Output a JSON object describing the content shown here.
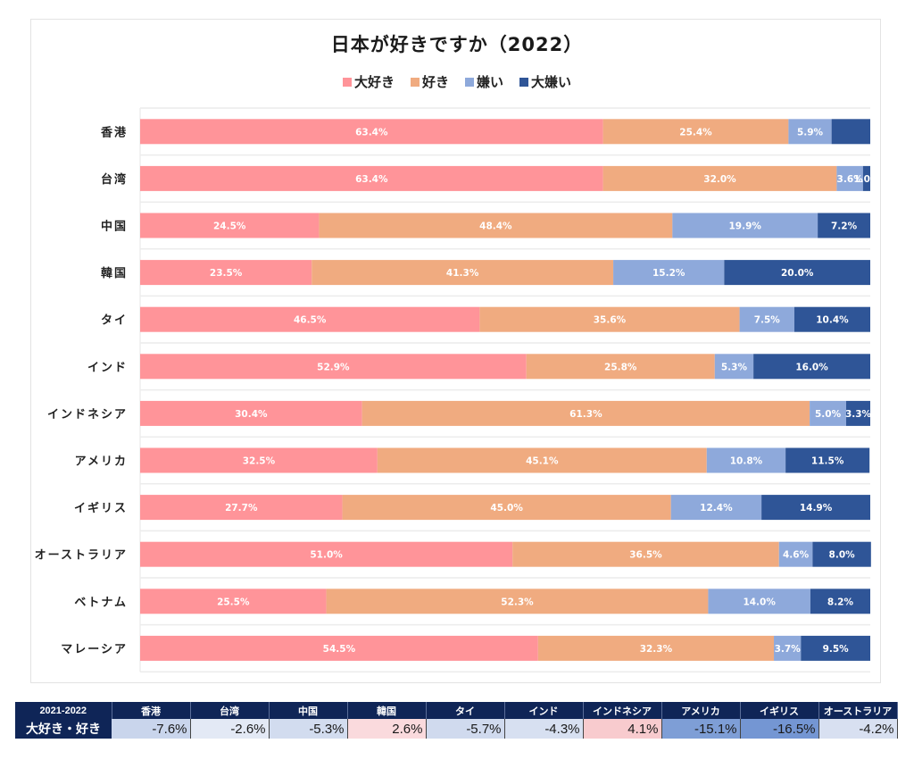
{
  "chart_data": {
    "type": "bar",
    "orientation": "horizontal",
    "stacked": "percent",
    "title": "日本が好きですか（2022）",
    "xlabel": "",
    "ylabel": "",
    "xlim": [
      0,
      100
    ],
    "grid": true,
    "legend_position": "top",
    "categories": [
      "香港",
      "台湾",
      "中国",
      "韓国",
      "タイ",
      "インド",
      "インドネシア",
      "アメリカ",
      "イギリス",
      "オーストラリア",
      "ベトナム",
      "マレーシア"
    ],
    "series": [
      {
        "name": "大好き",
        "color": "#ff9499",
        "values": [
          63.4,
          63.4,
          24.5,
          23.5,
          46.5,
          52.9,
          30.4,
          32.5,
          27.7,
          51.0,
          25.5,
          54.5
        ],
        "labels": [
          "63.4%",
          "63.4%",
          "24.5%",
          "23.5%",
          "46.5%",
          "52.9%",
          "30.4%",
          "32.5%",
          "27.7%",
          "51.0%",
          "25.5%",
          "54.5%"
        ]
      },
      {
        "name": "好き",
        "color": "#f0ab80",
        "values": [
          25.4,
          32.0,
          48.4,
          41.3,
          35.6,
          25.8,
          61.3,
          45.1,
          45.0,
          36.5,
          52.3,
          32.3
        ],
        "labels": [
          "25.4%",
          "32.0%",
          "48.4%",
          "41.3%",
          "35.6%",
          "25.8%",
          "61.3%",
          "45.1%",
          "45.0%",
          "36.5%",
          "52.3%",
          "32.3%"
        ]
      },
      {
        "name": "嫌い",
        "color": "#8ea9db",
        "values": [
          5.9,
          3.6,
          19.9,
          15.2,
          7.5,
          5.3,
          5.0,
          10.8,
          12.4,
          4.6,
          14.0,
          3.7
        ],
        "labels": [
          "5.9%",
          "3.6%",
          "19.9%",
          "15.2%",
          "7.5%",
          "5.3%",
          "5.0%",
          "10.8%",
          "12.4%",
          "4.6%",
          "14.0%",
          "3.7%"
        ]
      },
      {
        "name": "大嫌い",
        "color": "#2f5597",
        "values": [
          5.3,
          1.0,
          7.2,
          20.0,
          10.4,
          16.0,
          3.3,
          11.5,
          14.9,
          8.0,
          8.2,
          9.5
        ],
        "labels": [
          "",
          "1.0%",
          "7.2%",
          "20.0%",
          "10.4%",
          "16.0%",
          "3.3%",
          "11.5%",
          "14.9%",
          "8.0%",
          "8.2%",
          "9.5%"
        ]
      }
    ]
  },
  "table": {
    "corner_label": "2021-2022",
    "row_label": "大好き・好き",
    "columns": [
      {
        "country": "香港",
        "value": "-7.6%",
        "color": "#c9d5ec"
      },
      {
        "country": "台湾",
        "value": "-2.6%",
        "color": "#e3e9f5"
      },
      {
        "country": "中国",
        "value": "-5.3%",
        "color": "#d2dcef"
      },
      {
        "country": "韓国",
        "value": "2.6%",
        "color": "#fadadd"
      },
      {
        "country": "タイ",
        "value": "-5.7%",
        "color": "#d0daee"
      },
      {
        "country": "インド",
        "value": "-4.3%",
        "color": "#d7e0f1"
      },
      {
        "country": "インドネシア",
        "value": "4.1%",
        "color": "#f8cbce"
      },
      {
        "country": "アメリカ",
        "value": "-15.1%",
        "color": "#7e9ed6"
      },
      {
        "country": "イギリス",
        "value": "-16.5%",
        "color": "#7496d3"
      },
      {
        "country": "オーストラリア",
        "value": "-4.2%",
        "color": "#d8e0f1"
      }
    ]
  }
}
